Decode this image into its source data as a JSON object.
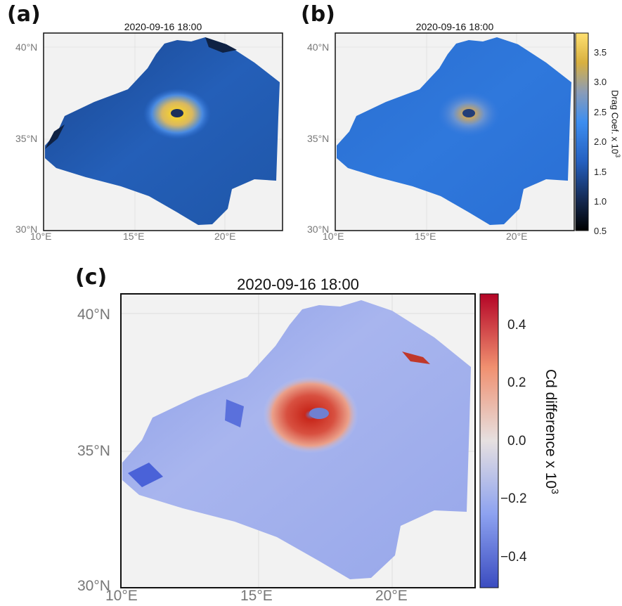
{
  "figure": {
    "panels": [
      {
        "id": "a",
        "label": "(a)",
        "title": "2020-09-16 18:00",
        "lat_ticks": [
          "40°N",
          "35°N",
          "30°N"
        ],
        "lon_ticks": [
          "10°E",
          "15°E",
          "20°E"
        ]
      },
      {
        "id": "b",
        "label": "(b)",
        "title": "2020-09-16 18:00",
        "lat_ticks": [
          "40°N",
          "35°N",
          "30°N"
        ],
        "lon_ticks": [
          "10°E",
          "15°E",
          "20°E"
        ]
      },
      {
        "id": "c",
        "label": "(c)",
        "title": "2020-09-16 18:00",
        "lat_ticks": [
          "40°N",
          "35°N",
          "30°N"
        ],
        "lon_ticks": [
          "10°E",
          "15°E",
          "20°E"
        ]
      }
    ],
    "colorbar_top": {
      "label": "Drag Coef. x 10",
      "label_exp": "3",
      "ticks": [
        "3.5",
        "3.0",
        "2.5",
        "2.0",
        "1.5",
        "1.0",
        "0.5"
      ],
      "range": [
        0.5,
        3.8
      ],
      "colormap": [
        "#000000",
        "#1a2f5a",
        "#2b6dd6",
        "#3d8ef0",
        "#a0a0a0",
        "#f0c020",
        "#ffe680"
      ]
    },
    "colorbar_bottom": {
      "label": "Cd difference x 10",
      "label_exp": "3",
      "ticks": [
        "0.4",
        "0.2",
        "0.0",
        "−0.2",
        "−0.4"
      ],
      "range": [
        -0.5,
        0.5
      ],
      "colormap": [
        "#3b4cc0",
        "#8da2f0",
        "#dddddd",
        "#f09a7a",
        "#b40426"
      ]
    },
    "colors": {
      "land": "#f2f2f2",
      "sea_low_a": "#1d4e9a",
      "sea_low_b": "#2360b8",
      "diff_neg": "#9aa9ec",
      "diff_pos": "#c8281c"
    }
  }
}
